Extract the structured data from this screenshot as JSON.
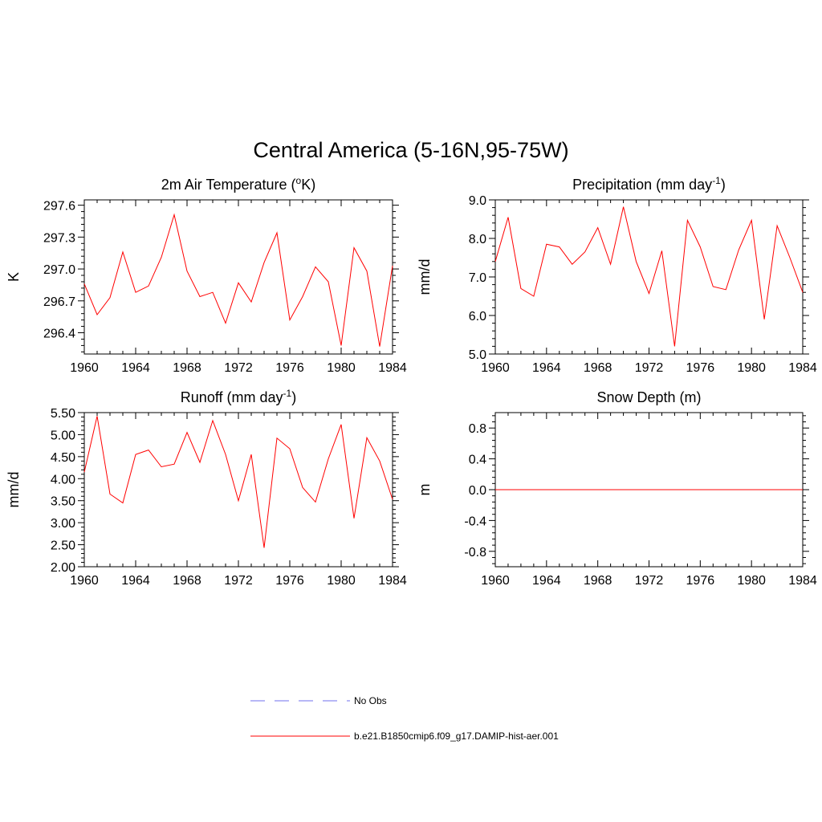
{
  "title": "Central America (5-16N,95-75W)",
  "colors": {
    "model": "#ff0000",
    "obs": "#8c8cf0",
    "axis": "#000000"
  },
  "legend": [
    {
      "label": "No Obs",
      "style": "dashed",
      "color": "#8c8cf0"
    },
    {
      "label": "b.e21.B1850cmip6.f09_g17.DAMIP-hist-aer.001",
      "style": "solid",
      "color": "#ff0000"
    }
  ],
  "chart_data": [
    {
      "type": "line",
      "title": "2m Air Temperature (oK)",
      "title_parts": [
        "2m Air Temperature (",
        "o",
        "K)"
      ],
      "ylabel": "K",
      "xlim": [
        1960,
        1984
      ],
      "ylim": [
        296.2,
        297.65
      ],
      "xticks": [
        1960,
        1964,
        1968,
        1972,
        1976,
        1980,
        1984
      ],
      "yticks": [
        296.4,
        296.7,
        297.0,
        297.3,
        297.6
      ],
      "ytick_labels": [
        "296.4",
        "296.7",
        "297.0",
        "297.3",
        "297.6"
      ],
      "x": [
        1960,
        1961,
        1962,
        1963,
        1964,
        1965,
        1966,
        1967,
        1968,
        1969,
        1970,
        1971,
        1972,
        1973,
        1974,
        1975,
        1976,
        1977,
        1978,
        1979,
        1980,
        1981,
        1982,
        1983,
        1984
      ],
      "series": [
        {
          "name": "b.e21.B1850cmip6.f09_g17.DAMIP-hist-aer.001",
          "values": [
            296.86,
            296.57,
            296.73,
            297.16,
            296.78,
            296.84,
            297.11,
            297.51,
            296.98,
            296.74,
            296.78,
            296.49,
            296.87,
            296.69,
            297.06,
            297.34,
            296.52,
            296.74,
            297.02,
            296.88,
            296.28,
            297.2,
            296.98,
            296.27,
            297.03
          ]
        }
      ]
    },
    {
      "type": "line",
      "title": "Precipitation (mm day-1)",
      "title_parts": [
        "Precipitation (mm day",
        "-1",
        ")"
      ],
      "ylabel": "mm/d",
      "xlim": [
        1960,
        1984
      ],
      "ylim": [
        5.0,
        9.0
      ],
      "xticks": [
        1960,
        1964,
        1968,
        1972,
        1976,
        1980,
        1984
      ],
      "yticks": [
        5.0,
        6.0,
        7.0,
        8.0,
        9.0
      ],
      "ytick_labels": [
        "5.0",
        "6.0",
        "7.0",
        "8.0",
        "9.0"
      ],
      "x": [
        1960,
        1961,
        1962,
        1963,
        1964,
        1965,
        1966,
        1967,
        1968,
        1969,
        1970,
        1971,
        1972,
        1973,
        1974,
        1975,
        1976,
        1977,
        1978,
        1979,
        1980,
        1981,
        1982,
        1983,
        1984
      ],
      "series": [
        {
          "name": "b.e21.B1850cmip6.f09_g17.DAMIP-hist-aer.001",
          "values": [
            7.4,
            8.55,
            6.7,
            6.5,
            7.85,
            7.78,
            7.33,
            7.65,
            8.28,
            7.33,
            8.82,
            7.4,
            6.57,
            7.68,
            5.2,
            8.47,
            7.78,
            6.75,
            6.67,
            7.7,
            8.47,
            5.9,
            8.33,
            7.5,
            6.6
          ]
        }
      ]
    },
    {
      "type": "line",
      "title": "Runoff (mm day-1)",
      "title_parts": [
        "Runoff (mm day",
        "-1",
        ")"
      ],
      "ylabel": "mm/d",
      "xlim": [
        1960,
        1984
      ],
      "ylim": [
        2.0,
        5.5
      ],
      "xticks": [
        1960,
        1964,
        1968,
        1972,
        1976,
        1980,
        1984
      ],
      "yticks": [
        2.0,
        2.5,
        3.0,
        3.5,
        4.0,
        4.5,
        5.0,
        5.5
      ],
      "ytick_labels": [
        "2.00",
        "2.50",
        "3.00",
        "3.50",
        "4.00",
        "4.50",
        "5.00",
        "5.50"
      ],
      "x": [
        1960,
        1961,
        1962,
        1963,
        1964,
        1965,
        1966,
        1967,
        1968,
        1969,
        1970,
        1971,
        1972,
        1973,
        1974,
        1975,
        1976,
        1977,
        1978,
        1979,
        1980,
        1981,
        1982,
        1983,
        1984
      ],
      "series": [
        {
          "name": "b.e21.B1850cmip6.f09_g17.DAMIP-hist-aer.001",
          "values": [
            4.15,
            5.42,
            3.65,
            3.45,
            4.55,
            4.65,
            4.27,
            4.33,
            5.05,
            4.37,
            5.32,
            4.55,
            3.5,
            4.55,
            2.43,
            4.92,
            4.68,
            3.8,
            3.47,
            4.45,
            5.23,
            3.1,
            4.93,
            4.4,
            3.53
          ]
        }
      ]
    },
    {
      "type": "line",
      "title": "Snow Depth (m)",
      "title_parts": [
        "Snow Depth (m)",
        "",
        ""
      ],
      "ylabel": "m",
      "xlim": [
        1960,
        1984
      ],
      "ylim": [
        -1.0,
        1.0
      ],
      "xticks": [
        1960,
        1964,
        1968,
        1972,
        1976,
        1980,
        1984
      ],
      "yticks": [
        -0.8,
        -0.4,
        0.0,
        0.4,
        0.8
      ],
      "ytick_labels": [
        "-0.8",
        "-0.4",
        "0.0",
        "0.4",
        "0.8"
      ],
      "x": [
        1960,
        1961,
        1962,
        1963,
        1964,
        1965,
        1966,
        1967,
        1968,
        1969,
        1970,
        1971,
        1972,
        1973,
        1974,
        1975,
        1976,
        1977,
        1978,
        1979,
        1980,
        1981,
        1982,
        1983,
        1984
      ],
      "series": [
        {
          "name": "b.e21.B1850cmip6.f09_g17.DAMIP-hist-aer.001",
          "values": [
            0,
            0,
            0,
            0,
            0,
            0,
            0,
            0,
            0,
            0,
            0,
            0,
            0,
            0,
            0,
            0,
            0,
            0,
            0,
            0,
            0,
            0,
            0,
            0,
            0
          ]
        }
      ]
    }
  ]
}
